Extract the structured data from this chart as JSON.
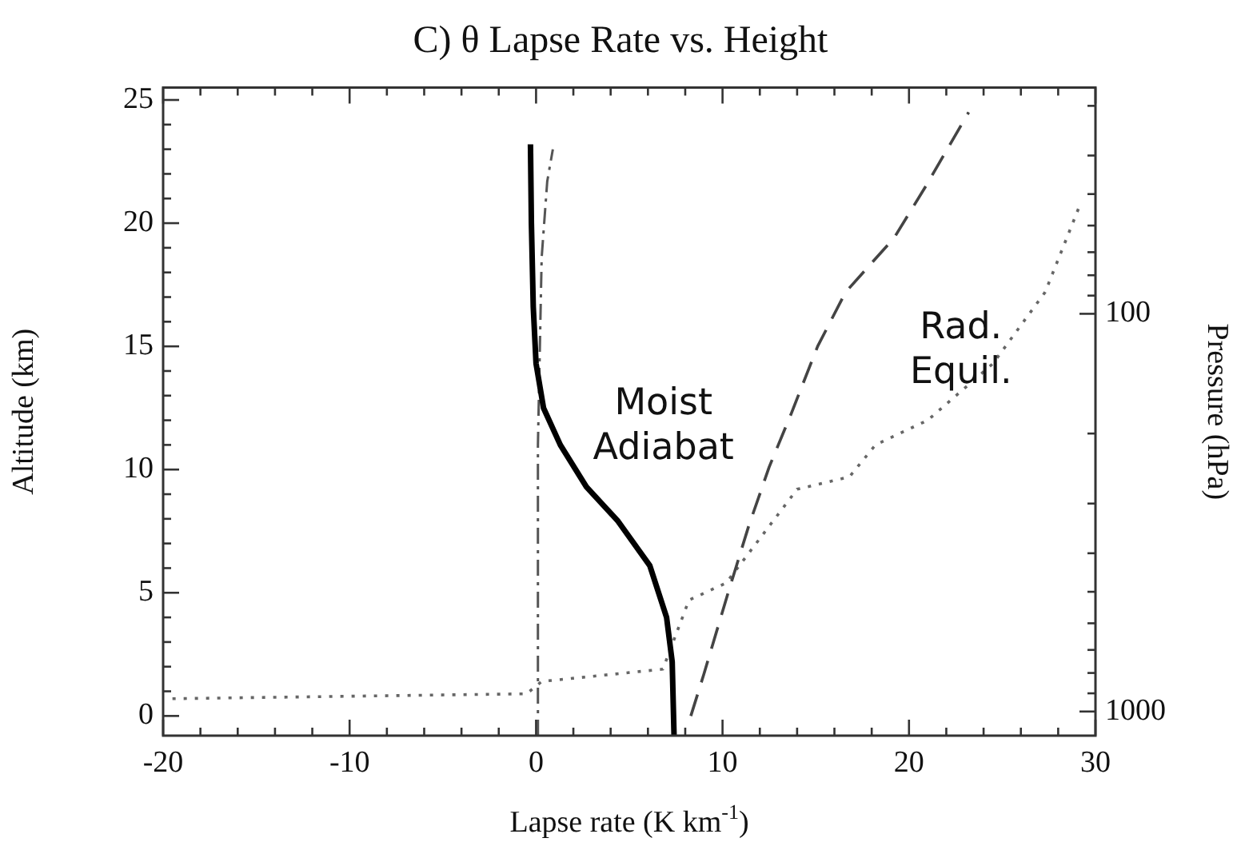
{
  "chart_data": {
    "type": "line",
    "title": "C) θ Lapse Rate vs. Height",
    "xlabel": "Lapse rate (K km$^{-1}$)",
    "ylabel": "Altitude (km)",
    "y2label": "Pressure (hPa)",
    "xlim": [
      -20,
      30
    ],
    "ylim": [
      -0.8,
      25.5
    ],
    "y2lim": [
      1150,
      27
    ],
    "log": "y2",
    "grid": false,
    "legend": false,
    "marker": "none",
    "xticks": [
      -20,
      {
        "value": -18,
        "label": null
      },
      {
        "value": -16,
        "label": null
      },
      {
        "value": -14,
        "label": null
      },
      {
        "value": -12,
        "label": null
      },
      -10,
      {
        "value": -8,
        "label": null
      },
      {
        "value": -6,
        "label": null
      },
      {
        "value": -4,
        "label": null
      },
      {
        "value": -2,
        "label": null
      },
      0,
      {
        "value": 2,
        "label": null
      },
      {
        "value": 4,
        "label": null
      },
      {
        "value": 6,
        "label": null
      },
      {
        "value": 8,
        "label": null
      },
      10,
      {
        "value": 12,
        "label": null
      },
      {
        "value": 14,
        "label": null
      },
      {
        "value": 16,
        "label": null
      },
      {
        "value": 18,
        "label": null
      },
      20,
      {
        "value": 22,
        "label": null
      },
      {
        "value": 24,
        "label": null
      },
      {
        "value": 26,
        "label": null
      },
      {
        "value": 28,
        "label": null
      },
      30
    ],
    "yticks": [
      0,
      {
        "value": 1,
        "label": null
      },
      {
        "value": 2,
        "label": null
      },
      {
        "value": 3,
        "label": null
      },
      {
        "value": 4,
        "label": null
      },
      5,
      {
        "value": 6,
        "label": null
      },
      {
        "value": 7,
        "label": null
      },
      {
        "value": 8,
        "label": null
      },
      {
        "value": 9,
        "label": null
      },
      10,
      {
        "value": 11,
        "label": null
      },
      {
        "value": 12,
        "label": null
      },
      {
        "value": 13,
        "label": null
      },
      {
        "value": 14,
        "label": null
      },
      15,
      {
        "value": 16,
        "label": null
      },
      {
        "value": 17,
        "label": null
      },
      {
        "value": 18,
        "label": null
      },
      {
        "value": 19,
        "label": null
      },
      20,
      {
        "value": 21,
        "label": null
      },
      {
        "value": 22,
        "label": null
      },
      {
        "value": 23,
        "label": null
      },
      {
        "value": 24,
        "label": null
      },
      25
    ],
    "y2ticks": [
      1000,
      {
        "value": 900,
        "label": null
      },
      {
        "value": 800,
        "label": null
      },
      {
        "value": 700,
        "label": null
      },
      {
        "value": 600,
        "label": null
      },
      {
        "value": 500,
        "label": null
      },
      {
        "value": 400,
        "label": null
      },
      {
        "value": 300,
        "label": null
      },
      {
        "value": 200,
        "label": null
      },
      100,
      {
        "value": 90,
        "label": null
      },
      {
        "value": 80,
        "label": null
      },
      {
        "value": 70,
        "label": null
      },
      {
        "value": 60,
        "label": null
      },
      {
        "value": 50,
        "label": null
      },
      {
        "value": 40,
        "label": null
      },
      {
        "value": 30,
        "label": null
      }
    ],
    "series": [
      {
        "name": "Moist Adiabat",
        "color": "#000000",
        "line_style": "solid",
        "x": [
          7.4,
          7.3,
          7.0,
          6.1,
          4.4,
          2.7,
          1.3,
          0.4,
          0,
          -0.15,
          -0.25,
          -0.3
        ],
        "values": [
          -0.8,
          2.2,
          4.0,
          6.1,
          7.9,
          9.3,
          11.0,
          12.5,
          14.3,
          16.6,
          20.0,
          23.2
        ]
      },
      {
        "color": "#555555",
        "line_style": "dashdot",
        "x": [
          0.1,
          0.1,
          0.3,
          0.6,
          0.9
        ],
        "values": [
          -0.8,
          11.0,
          18.6,
          21.7,
          23.0
        ]
      },
      {
        "color": "#444444",
        "line_style": "dashed",
        "x": [
          8.3,
          9.0,
          10.3,
          11.4,
          12.5,
          13.7,
          15.1,
          16.6,
          19.2,
          20.9,
          23.2
        ],
        "values": [
          0,
          1.7,
          5.0,
          7.7,
          10.1,
          12.3,
          15.0,
          17.2,
          19.4,
          21.5,
          24.5
        ]
      },
      {
        "name": "Rad. Equil.",
        "color": "#666666",
        "line_style": "dotted",
        "x": [
          -19.5,
          -0.5,
          0.3,
          6.8,
          8.2,
          10.2,
          12.2,
          14.0,
          16.8,
          18.2,
          21.0,
          24.5,
          27.3,
          29.2
        ],
        "values": [
          0.7,
          0.9,
          1.4,
          1.9,
          4.7,
          5.4,
          7.4,
          9.2,
          9.7,
          11.0,
          12.0,
          14.3,
          17.2,
          20.8
        ]
      }
    ]
  }
}
